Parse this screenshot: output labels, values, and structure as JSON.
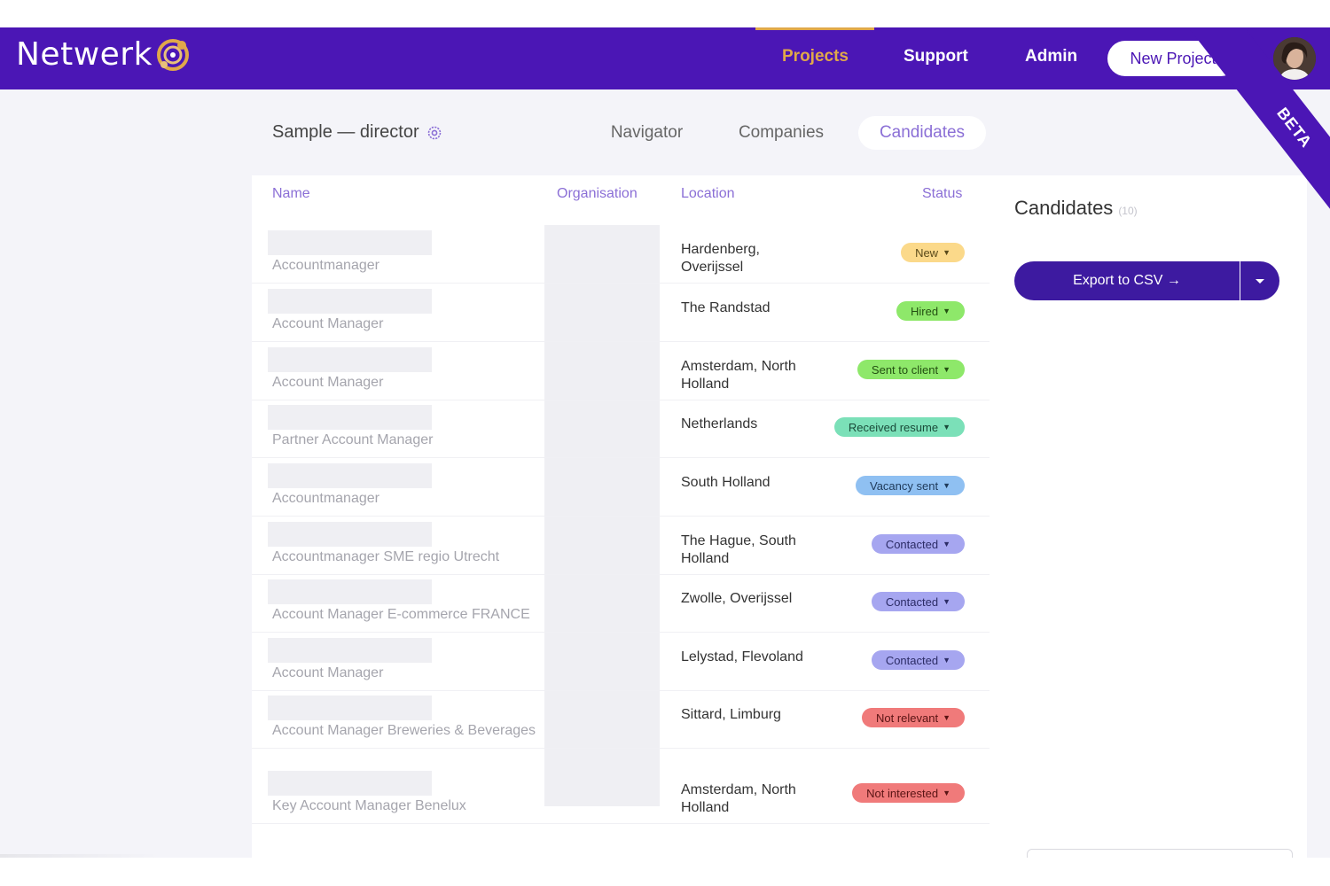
{
  "app": {
    "name": "Netwerk"
  },
  "nav": {
    "items": [
      {
        "label": "Projects",
        "active": true
      },
      {
        "label": "Support",
        "active": false
      },
      {
        "label": "Admin",
        "active": false
      }
    ],
    "new_project_label": "New Project"
  },
  "ribbon": {
    "label": "BETA"
  },
  "project": {
    "title": "Sample — director"
  },
  "subtabs": [
    {
      "label": "Navigator",
      "active": false
    },
    {
      "label": "Companies",
      "active": false
    },
    {
      "label": "Candidates",
      "active": true
    }
  ],
  "table": {
    "headers": {
      "name": "Name",
      "organisation": "Organisation",
      "location": "Location",
      "status": "Status"
    },
    "rows": [
      {
        "role": "Accountmanager",
        "location": "Hardenberg, Overijssel",
        "status": "New",
        "status_color": "#fbd98a",
        "status_text_color": "#5a4a1a"
      },
      {
        "role": "Account Manager",
        "location": "The Randstad",
        "status": "Hired",
        "status_color": "#8ee86a",
        "status_text_color": "#234f12"
      },
      {
        "role": "Account Manager",
        "location": "Amsterdam, North Holland",
        "status": "Sent to client",
        "status_color": "#8ee86a",
        "status_text_color": "#234f12"
      },
      {
        "role": "Partner Account Manager",
        "location": "Netherlands",
        "status": "Received resume",
        "status_color": "#7be0b8",
        "status_text_color": "#1a4a39"
      },
      {
        "role": "Accountmanager",
        "location": "South Holland",
        "status": "Vacancy sent",
        "status_color": "#8fc0f2",
        "status_text_color": "#1f3a5a"
      },
      {
        "role": "Accountmanager SME regio Utrecht",
        "location": "The Hague, South Holland",
        "status": "Contacted",
        "status_color": "#a6a6f0",
        "status_text_color": "#2c2c66"
      },
      {
        "role": "Account Manager E-commerce FRANCE",
        "location": "Zwolle, Overijssel",
        "status": "Contacted",
        "status_color": "#a6a6f0",
        "status_text_color": "#2c2c66"
      },
      {
        "role": "Account Manager",
        "location": "Lelystad, Flevoland",
        "status": "Contacted",
        "status_color": "#a6a6f0",
        "status_text_color": "#2c2c66"
      },
      {
        "role": "Account Manager Breweries & Beverages",
        "location": "Sittard, Limburg",
        "status": "Not relevant",
        "status_color": "#f07a7a",
        "status_text_color": "#5a1414"
      },
      {
        "role": "Key Account Manager Benelux",
        "location": "Amsterdam, North Holland",
        "status": "Not interested",
        "status_color": "#f07a7a",
        "status_text_color": "#5a1414"
      }
    ]
  },
  "side_panel": {
    "title": "Candidates",
    "count": "(10)",
    "export_label": "Export to CSV →"
  },
  "colors": {
    "brand": "#4b16b5",
    "accent": "#e0a84a",
    "link": "#8b6fd6",
    "button": "#3d1aa0"
  },
  "icons": {
    "logo": "globe-logo-icon",
    "gear": "gear-icon",
    "dropdown": "caret-down-icon"
  }
}
